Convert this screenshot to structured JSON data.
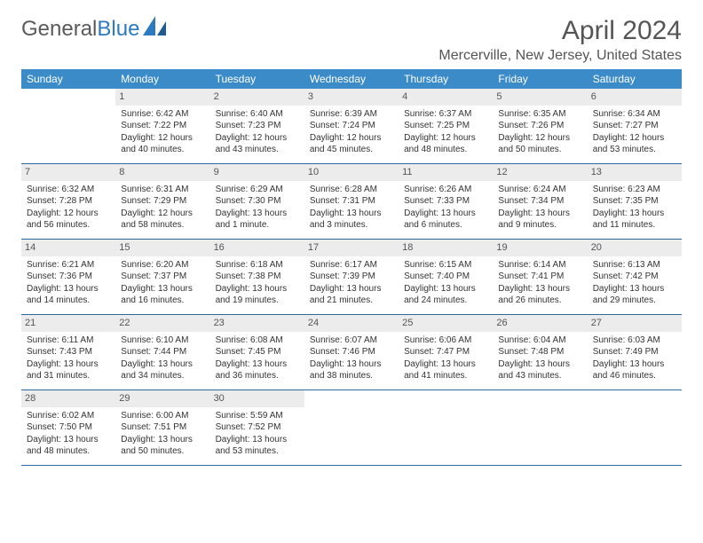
{
  "logo": {
    "text1": "General",
    "text2": "Blue"
  },
  "title": "April 2024",
  "location": "Mercerville, New Jersey, United States",
  "colors": {
    "header_bg": "#3b8bc9",
    "header_text": "#ffffff",
    "daynum_bg": "#ececec",
    "border": "#2b6aa0",
    "text": "#333333",
    "title_text": "#555555"
  },
  "day_names": [
    "Sunday",
    "Monday",
    "Tuesday",
    "Wednesday",
    "Thursday",
    "Friday",
    "Saturday"
  ],
  "weeks": [
    [
      {
        "empty": true
      },
      {
        "d": "1",
        "sr": "Sunrise: 6:42 AM",
        "ss": "Sunset: 7:22 PM",
        "dl1": "Daylight: 12 hours",
        "dl2": "and 40 minutes."
      },
      {
        "d": "2",
        "sr": "Sunrise: 6:40 AM",
        "ss": "Sunset: 7:23 PM",
        "dl1": "Daylight: 12 hours",
        "dl2": "and 43 minutes."
      },
      {
        "d": "3",
        "sr": "Sunrise: 6:39 AM",
        "ss": "Sunset: 7:24 PM",
        "dl1": "Daylight: 12 hours",
        "dl2": "and 45 minutes."
      },
      {
        "d": "4",
        "sr": "Sunrise: 6:37 AM",
        "ss": "Sunset: 7:25 PM",
        "dl1": "Daylight: 12 hours",
        "dl2": "and 48 minutes."
      },
      {
        "d": "5",
        "sr": "Sunrise: 6:35 AM",
        "ss": "Sunset: 7:26 PM",
        "dl1": "Daylight: 12 hours",
        "dl2": "and 50 minutes."
      },
      {
        "d": "6",
        "sr": "Sunrise: 6:34 AM",
        "ss": "Sunset: 7:27 PM",
        "dl1": "Daylight: 12 hours",
        "dl2": "and 53 minutes."
      }
    ],
    [
      {
        "d": "7",
        "sr": "Sunrise: 6:32 AM",
        "ss": "Sunset: 7:28 PM",
        "dl1": "Daylight: 12 hours",
        "dl2": "and 56 minutes."
      },
      {
        "d": "8",
        "sr": "Sunrise: 6:31 AM",
        "ss": "Sunset: 7:29 PM",
        "dl1": "Daylight: 12 hours",
        "dl2": "and 58 minutes."
      },
      {
        "d": "9",
        "sr": "Sunrise: 6:29 AM",
        "ss": "Sunset: 7:30 PM",
        "dl1": "Daylight: 13 hours",
        "dl2": "and 1 minute."
      },
      {
        "d": "10",
        "sr": "Sunrise: 6:28 AM",
        "ss": "Sunset: 7:31 PM",
        "dl1": "Daylight: 13 hours",
        "dl2": "and 3 minutes."
      },
      {
        "d": "11",
        "sr": "Sunrise: 6:26 AM",
        "ss": "Sunset: 7:33 PM",
        "dl1": "Daylight: 13 hours",
        "dl2": "and 6 minutes."
      },
      {
        "d": "12",
        "sr": "Sunrise: 6:24 AM",
        "ss": "Sunset: 7:34 PM",
        "dl1": "Daylight: 13 hours",
        "dl2": "and 9 minutes."
      },
      {
        "d": "13",
        "sr": "Sunrise: 6:23 AM",
        "ss": "Sunset: 7:35 PM",
        "dl1": "Daylight: 13 hours",
        "dl2": "and 11 minutes."
      }
    ],
    [
      {
        "d": "14",
        "sr": "Sunrise: 6:21 AM",
        "ss": "Sunset: 7:36 PM",
        "dl1": "Daylight: 13 hours",
        "dl2": "and 14 minutes."
      },
      {
        "d": "15",
        "sr": "Sunrise: 6:20 AM",
        "ss": "Sunset: 7:37 PM",
        "dl1": "Daylight: 13 hours",
        "dl2": "and 16 minutes."
      },
      {
        "d": "16",
        "sr": "Sunrise: 6:18 AM",
        "ss": "Sunset: 7:38 PM",
        "dl1": "Daylight: 13 hours",
        "dl2": "and 19 minutes."
      },
      {
        "d": "17",
        "sr": "Sunrise: 6:17 AM",
        "ss": "Sunset: 7:39 PM",
        "dl1": "Daylight: 13 hours",
        "dl2": "and 21 minutes."
      },
      {
        "d": "18",
        "sr": "Sunrise: 6:15 AM",
        "ss": "Sunset: 7:40 PM",
        "dl1": "Daylight: 13 hours",
        "dl2": "and 24 minutes."
      },
      {
        "d": "19",
        "sr": "Sunrise: 6:14 AM",
        "ss": "Sunset: 7:41 PM",
        "dl1": "Daylight: 13 hours",
        "dl2": "and 26 minutes."
      },
      {
        "d": "20",
        "sr": "Sunrise: 6:13 AM",
        "ss": "Sunset: 7:42 PM",
        "dl1": "Daylight: 13 hours",
        "dl2": "and 29 minutes."
      }
    ],
    [
      {
        "d": "21",
        "sr": "Sunrise: 6:11 AM",
        "ss": "Sunset: 7:43 PM",
        "dl1": "Daylight: 13 hours",
        "dl2": "and 31 minutes."
      },
      {
        "d": "22",
        "sr": "Sunrise: 6:10 AM",
        "ss": "Sunset: 7:44 PM",
        "dl1": "Daylight: 13 hours",
        "dl2": "and 34 minutes."
      },
      {
        "d": "23",
        "sr": "Sunrise: 6:08 AM",
        "ss": "Sunset: 7:45 PM",
        "dl1": "Daylight: 13 hours",
        "dl2": "and 36 minutes."
      },
      {
        "d": "24",
        "sr": "Sunrise: 6:07 AM",
        "ss": "Sunset: 7:46 PM",
        "dl1": "Daylight: 13 hours",
        "dl2": "and 38 minutes."
      },
      {
        "d": "25",
        "sr": "Sunrise: 6:06 AM",
        "ss": "Sunset: 7:47 PM",
        "dl1": "Daylight: 13 hours",
        "dl2": "and 41 minutes."
      },
      {
        "d": "26",
        "sr": "Sunrise: 6:04 AM",
        "ss": "Sunset: 7:48 PM",
        "dl1": "Daylight: 13 hours",
        "dl2": "and 43 minutes."
      },
      {
        "d": "27",
        "sr": "Sunrise: 6:03 AM",
        "ss": "Sunset: 7:49 PM",
        "dl1": "Daylight: 13 hours",
        "dl2": "and 46 minutes."
      }
    ],
    [
      {
        "d": "28",
        "sr": "Sunrise: 6:02 AM",
        "ss": "Sunset: 7:50 PM",
        "dl1": "Daylight: 13 hours",
        "dl2": "and 48 minutes."
      },
      {
        "d": "29",
        "sr": "Sunrise: 6:00 AM",
        "ss": "Sunset: 7:51 PM",
        "dl1": "Daylight: 13 hours",
        "dl2": "and 50 minutes."
      },
      {
        "d": "30",
        "sr": "Sunrise: 5:59 AM",
        "ss": "Sunset: 7:52 PM",
        "dl1": "Daylight: 13 hours",
        "dl2": "and 53 minutes."
      },
      {
        "empty": true
      },
      {
        "empty": true
      },
      {
        "empty": true
      },
      {
        "empty": true
      }
    ]
  ]
}
